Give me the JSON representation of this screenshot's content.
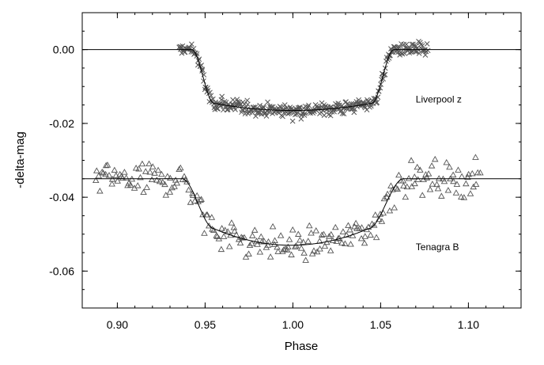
{
  "chart_data": {
    "type": "scatter",
    "title": "",
    "xlabel": "Phase",
    "ylabel": "-delta-mag",
    "xlim": [
      0.88,
      1.13
    ],
    "ylim": [
      -0.07,
      0.01
    ],
    "grid": false,
    "legend": "none",
    "x_ticks": [
      {
        "value": 0.9,
        "label": "0.90"
      },
      {
        "value": 0.95,
        "label": "0.95"
      },
      {
        "value": 1.0,
        "label": "1.00"
      },
      {
        "value": 1.05,
        "label": "1.05"
      },
      {
        "value": 1.1,
        "label": "1.10"
      }
    ],
    "y_ticks": [
      {
        "value": 0.0,
        "label": "0.00"
      },
      {
        "value": -0.02,
        "label": "-0.02"
      },
      {
        "value": -0.04,
        "label": "-0.04"
      },
      {
        "value": -0.06,
        "label": "-0.06"
      }
    ],
    "series": [
      {
        "name": "Liverpool z",
        "marker": "x",
        "label_position": {
          "x": 1.07,
          "y": -0.0143
        },
        "model": {
          "baseline": 0.0,
          "depth": 0.0165,
          "ingress_start": 0.9425,
          "ingress_end": 0.955,
          "egress_start": 1.045,
          "egress_end": 1.0575,
          "curvature": 0.12
        },
        "noise_sigma": 0.0016,
        "x_range": [
          0.935,
          1.077
        ],
        "n_points": 360
      },
      {
        "name": "Tenagra B",
        "marker": "triangle",
        "label_position": {
          "x": 1.07,
          "y": -0.0543
        },
        "model": {
          "baseline": -0.035,
          "depth": 0.018,
          "ingress_start": 0.937,
          "ingress_end": 0.955,
          "egress_start": 1.043,
          "egress_end": 1.063,
          "curvature": 0.25
        },
        "noise_sigma": 0.0037,
        "x_range": [
          0.887,
          1.107
        ],
        "n_points": 240
      }
    ],
    "colors": {
      "axis": "#000000",
      "marker": "#555555",
      "model_line": "#000000"
    }
  }
}
